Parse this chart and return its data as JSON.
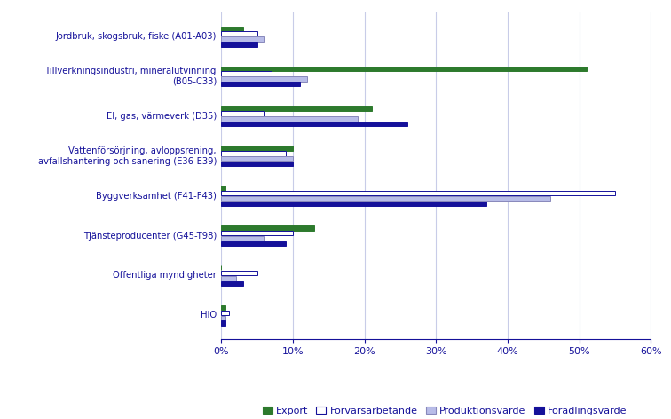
{
  "categories": [
    "Jordbruk, skogsbruk, fiske (A01-A03)",
    "Tillverkningsindustri, mineralutvinning\n(B05-C33)",
    "El, gas, värmeverk (D35)",
    "Vattenförsörjning, avloppsrening,\navfallshantering och sanering (E36-E39)",
    "Byggverksamhet (F41-F43)",
    "Tjänsteproducenter (G45-T98)",
    "Offentliga myndigheter",
    "HIO"
  ],
  "series": {
    "Export": [
      3,
      51,
      21,
      10,
      0.5,
      13,
      0,
      0.5
    ],
    "Forv": [
      5,
      7,
      6,
      9,
      55,
      10,
      5,
      1
    ],
    "Prod": [
      6,
      12,
      19,
      10,
      46,
      6,
      2,
      0.5
    ],
    "Forad": [
      5,
      11,
      26,
      10,
      37,
      9,
      3,
      0.5
    ]
  },
  "series_labels": [
    "Export",
    "Förvärsarbetande",
    "Produktionsvärde",
    "Förädlingsvärde"
  ],
  "colors": {
    "Export": "#2d7a2d",
    "Forv": "#ffffff",
    "Prod": "#b8bce8",
    "Forad": "#15119a"
  },
  "edge_colors": {
    "Export": "#2d7a2d",
    "Forv": "#15119a",
    "Prod": "#8888bb",
    "Forad": "#15119a"
  },
  "xlim": [
    0,
    60
  ],
  "xticks": [
    0,
    10,
    20,
    30,
    40,
    50,
    60
  ],
  "xtick_labels": [
    "0%",
    "10%",
    "20%",
    "30%",
    "40%",
    "50%",
    "60%"
  ],
  "label_color": "#15119a",
  "background_color": "#ffffff",
  "grid_color": "#c8cce8",
  "bar_height": 0.12,
  "bar_spacing": 0.13
}
